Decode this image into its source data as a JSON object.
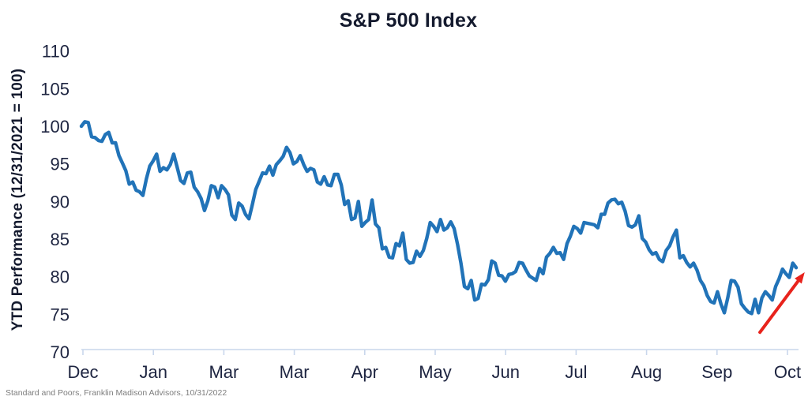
{
  "chart_data": {
    "type": "line",
    "title": "S&P 500 Index",
    "ylabel": "YTD Performance (12/31/2021 = 100)",
    "xlabel": "",
    "x_tick_labels": [
      "Dec",
      "Jan",
      "Mar",
      "Mar",
      "Apr",
      "May",
      "Jun",
      "Jul",
      "Aug",
      "Sep",
      "Oct"
    ],
    "y_ticks": [
      110,
      105,
      100,
      95,
      90,
      85,
      80,
      75,
      70
    ],
    "ylim": [
      70,
      110
    ],
    "grid": false,
    "legend": false,
    "series": [
      {
        "name": "S&P 500 Index",
        "color": "#2173b8",
        "values": [
          100,
          100.6,
          100.5,
          98.6,
          98.5,
          98.1,
          98,
          98.9,
          99.2,
          97.8,
          97.8,
          96.1,
          95.1,
          94.1,
          92.3,
          92.6,
          91.5,
          91.3,
          90.8,
          93,
          94.7,
          95.4,
          96.3,
          94,
          94.5,
          94.2,
          94.9,
          96.3,
          94.6,
          92.8,
          92.4,
          93.8,
          93.9,
          91.9,
          91.3,
          90.4,
          88.8,
          90.1,
          92.1,
          91.9,
          90.5,
          92.1,
          91.6,
          90.9,
          88.2,
          87.6,
          89.8,
          89.4,
          88.3,
          87.7,
          89.6,
          91.6,
          92.7,
          93.8,
          93.7,
          94.7,
          93.5,
          94.9,
          95.4,
          96,
          97.2,
          96.5,
          95,
          95.3,
          96.1,
          94.9,
          94,
          94.4,
          94.2,
          92.6,
          92.3,
          93.3,
          92.2,
          92.1,
          93.6,
          93.6,
          92.2,
          89.6,
          90.1,
          87.6,
          87.8,
          90,
          86.7,
          87.2,
          87.6,
          90.2,
          87,
          86.5,
          83.7,
          83.9,
          82.6,
          82.5,
          84.4,
          84.1,
          85.8,
          82.3,
          81.8,
          81.9,
          83.4,
          82.7,
          83.5,
          85.1,
          87.2,
          86.7,
          86,
          87.6,
          86.2,
          86.5,
          87.3,
          86.4,
          84.3,
          81.8,
          78.7,
          78.4,
          79.5,
          76.9,
          77.1,
          79,
          78.9,
          79.6,
          82.1,
          81.8,
          80.2,
          80.1,
          79.4,
          80.3,
          80.4,
          80.7,
          81.9,
          81.8,
          80.9,
          80.1,
          79.8,
          79.5,
          81.1,
          80.4,
          82.6,
          83.1,
          83.9,
          83.1,
          83.2,
          82.3,
          84.4,
          85.4,
          86.7,
          86.4,
          85.8,
          87.2,
          87.1,
          87,
          86.9,
          86.5,
          88.3,
          88.3,
          89.8,
          90.2,
          90.3,
          89.7,
          89.9,
          88.7,
          86.8,
          86.6,
          86.9,
          88.1,
          85.1,
          84.6,
          83.6,
          83,
          83.2,
          82.3,
          82,
          83.5,
          84.1,
          85.3,
          86.2,
          82.5,
          82.8,
          81.9,
          81.3,
          81.8,
          80.9,
          79.5,
          78.8,
          77.5,
          76.7,
          76.5,
          78,
          76.4,
          75.2,
          77.2,
          79.5,
          79.4,
          78.6,
          76.4,
          75.8,
          75.3,
          75.1,
          77,
          75.2,
          77.2,
          78,
          77.5,
          76.9,
          78.7,
          79.7,
          81,
          80.4,
          79.9,
          81.8,
          81.2
        ]
      }
    ],
    "trend_arrow": {
      "direction": "up",
      "color": "#e8231c",
      "from": {
        "day": 198.4,
        "value": 72.6
      },
      "to": {
        "day": 211.5,
        "value": 80.6
      }
    },
    "source_note": "Standard and Poors, Franklin Madison Advisors, 10/31/2022",
    "colors": {
      "title": "#141a2e",
      "tick_labels": "#1d2440",
      "axis_line": "#c9d7ec",
      "source": "#7d7d7d"
    }
  }
}
